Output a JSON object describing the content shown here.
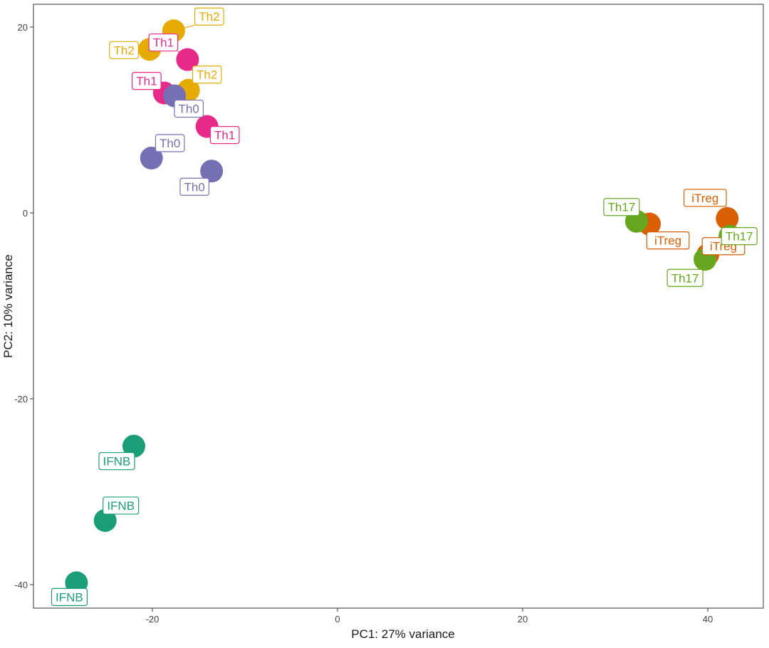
{
  "chart_data": {
    "type": "scatter",
    "title": "",
    "xlabel": "PC1: 27% variance",
    "ylabel": "PC2: 10% variance",
    "xlim": [
      -35.5,
      46
    ],
    "ylim": [
      -42.5,
      22.5
    ],
    "xticks": [
      -20,
      0,
      20,
      40
    ],
    "yticks": [
      20,
      0,
      -20,
      -40
    ],
    "xtick_labels": [
      "-20",
      "0",
      "20",
      "40"
    ],
    "ytick_labels": [
      "20",
      "0",
      "-20",
      "-40"
    ],
    "grid": false,
    "legend": "none",
    "colors": {
      "Th0": "#7570b3",
      "Th1": "#e7298a",
      "Th2": "#e6ab02",
      "Th17": "#66a61e",
      "iTreg": "#d95f02",
      "IFNB": "#1b9e77"
    },
    "points": [
      {
        "group": "Th2",
        "x": -17.7,
        "y": 19.6,
        "label": "Th2"
      },
      {
        "group": "Th2",
        "x": -20.3,
        "y": 17.6,
        "label": "Th2"
      },
      {
        "group": "Th2",
        "x": -16.1,
        "y": 13.2,
        "label": "Th2"
      },
      {
        "group": "Th1",
        "x": -16.2,
        "y": 16.5,
        "label": "Th1"
      },
      {
        "group": "Th1",
        "x": -18.7,
        "y": 12.9,
        "label": "Th1"
      },
      {
        "group": "Th1",
        "x": -14.1,
        "y": 9.3,
        "label": "Th1"
      },
      {
        "group": "Th0",
        "x": -17.6,
        "y": 12.6,
        "label": "Th0"
      },
      {
        "group": "Th0",
        "x": -20.1,
        "y": 5.9,
        "label": "Th0"
      },
      {
        "group": "Th0",
        "x": -13.6,
        "y": 4.5,
        "label": "Th0"
      },
      {
        "group": "iTreg",
        "x": 42.1,
        "y": -0.6,
        "label": "iTreg"
      },
      {
        "group": "iTreg",
        "x": 33.7,
        "y": -1.2,
        "label": "iTreg"
      },
      {
        "group": "iTreg",
        "x": 40.0,
        "y": -4.5,
        "label": "iTreg"
      },
      {
        "group": "Th17",
        "x": 32.3,
        "y": -0.9,
        "label": "Th17"
      },
      {
        "group": "Th17",
        "x": 42.4,
        "y": -2.5,
        "label": "Th17"
      },
      {
        "group": "Th17",
        "x": 39.7,
        "y": -5.0,
        "label": "Th17"
      },
      {
        "group": "IFNB",
        "x": -22.0,
        "y": -25.1,
        "label": "IFNB"
      },
      {
        "group": "IFNB",
        "x": -25.1,
        "y": -33.1,
        "label": "IFNB"
      },
      {
        "group": "IFNB",
        "x": -28.2,
        "y": -39.8,
        "label": "IFNB"
      }
    ]
  }
}
